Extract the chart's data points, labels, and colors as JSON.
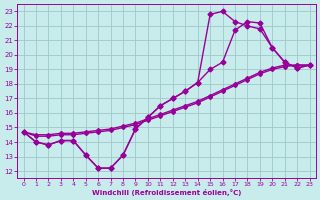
{
  "xlabel": "Windchill (Refroidissement éolien,°C)",
  "xlim": [
    -0.5,
    23.5
  ],
  "ylim": [
    11.5,
    23.5
  ],
  "xticks": [
    0,
    1,
    2,
    3,
    4,
    5,
    6,
    7,
    8,
    9,
    10,
    11,
    12,
    13,
    14,
    15,
    16,
    17,
    18,
    19,
    20,
    21,
    22,
    23
  ],
  "yticks": [
    12,
    13,
    14,
    15,
    16,
    17,
    18,
    19,
    20,
    21,
    22,
    23
  ],
  "bg_color": "#c8ecec",
  "grid_color": "#a0c8c8",
  "line_color": "#990099",
  "line_width": 1.0,
  "marker_size": 2.5,
  "line1_x": [
    0,
    1,
    2,
    3,
    4,
    5,
    6,
    7,
    8,
    9,
    10,
    11,
    12,
    13,
    14,
    15,
    16,
    17,
    18,
    19,
    20,
    21,
    22,
    23
  ],
  "line1_y": [
    14.7,
    14.0,
    13.8,
    14.1,
    14.1,
    13.1,
    12.2,
    12.2,
    13.1,
    14.9,
    15.7,
    16.5,
    17.0,
    17.5,
    18.1,
    22.8,
    23.0,
    22.3,
    22.0,
    21.8,
    20.5,
    19.5,
    19.1,
    19.3
  ],
  "line2_x": [
    0,
    1,
    2,
    3,
    4,
    5,
    6,
    7,
    8,
    9,
    10,
    11,
    12,
    13,
    14,
    15,
    16,
    17,
    18,
    19,
    20,
    21,
    22,
    23
  ],
  "line2_y": [
    14.7,
    14.0,
    13.8,
    14.1,
    14.1,
    13.1,
    12.2,
    12.2,
    13.1,
    14.9,
    15.7,
    16.5,
    17.0,
    17.5,
    18.1,
    19.0,
    19.5,
    21.7,
    22.3,
    22.2,
    20.5,
    19.5,
    19.1,
    19.3
  ],
  "line3_x": [
    0,
    1,
    2,
    3,
    4,
    5,
    6,
    7,
    8,
    9,
    10,
    11,
    12,
    13,
    14,
    15,
    16,
    17,
    18,
    19,
    20,
    21,
    22,
    23
  ],
  "line3_y": [
    14.7,
    14.4,
    14.4,
    14.5,
    14.5,
    14.6,
    14.7,
    14.8,
    15.0,
    15.2,
    15.5,
    15.8,
    16.1,
    16.4,
    16.7,
    17.1,
    17.5,
    17.9,
    18.3,
    18.7,
    19.0,
    19.2,
    19.3,
    19.3
  ],
  "line4_x": [
    0,
    1,
    2,
    3,
    4,
    5,
    6,
    7,
    8,
    9,
    10,
    11,
    12,
    13,
    14,
    15,
    16,
    17,
    18,
    19,
    20,
    21,
    22,
    23
  ],
  "line4_y": [
    14.7,
    14.5,
    14.5,
    14.6,
    14.6,
    14.7,
    14.8,
    14.9,
    15.1,
    15.3,
    15.6,
    15.9,
    16.2,
    16.5,
    16.8,
    17.2,
    17.6,
    18.0,
    18.4,
    18.8,
    19.1,
    19.3,
    19.3,
    19.3
  ]
}
